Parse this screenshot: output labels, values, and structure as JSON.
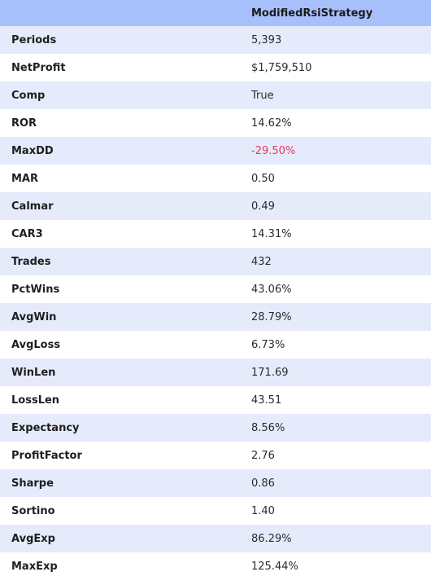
{
  "header": {
    "metric": "",
    "strategy": "ModifiedRsiStrategy"
  },
  "colors": {
    "header_bg": "#a7c0fb",
    "row_alt_bg": "#e6ebfb",
    "negative_value": "#e8365a"
  },
  "rows": [
    {
      "label": "Periods",
      "value": "5,393"
    },
    {
      "label": "NetProfit",
      "value": "$1,759,510"
    },
    {
      "label": "Comp",
      "value": "True"
    },
    {
      "label": "ROR",
      "value": "14.62%"
    },
    {
      "label": "MaxDD",
      "value": "-29.50%"
    },
    {
      "label": "MAR",
      "value": "0.50"
    },
    {
      "label": "Calmar",
      "value": "0.49"
    },
    {
      "label": "CAR3",
      "value": "14.31%"
    },
    {
      "label": "Trades",
      "value": "432"
    },
    {
      "label": "PctWins",
      "value": "43.06%"
    },
    {
      "label": "AvgWin",
      "value": "28.79%"
    },
    {
      "label": "AvgLoss",
      "value": "6.73%"
    },
    {
      "label": "WinLen",
      "value": "171.69"
    },
    {
      "label": "LossLen",
      "value": "43.51"
    },
    {
      "label": "Expectancy",
      "value": "8.56%"
    },
    {
      "label": "ProfitFactor",
      "value": "2.76"
    },
    {
      "label": "Sharpe",
      "value": "0.86"
    },
    {
      "label": "Sortino",
      "value": "1.40"
    },
    {
      "label": "AvgExp",
      "value": "86.29%"
    },
    {
      "label": "MaxExp",
      "value": "125.44%"
    }
  ]
}
